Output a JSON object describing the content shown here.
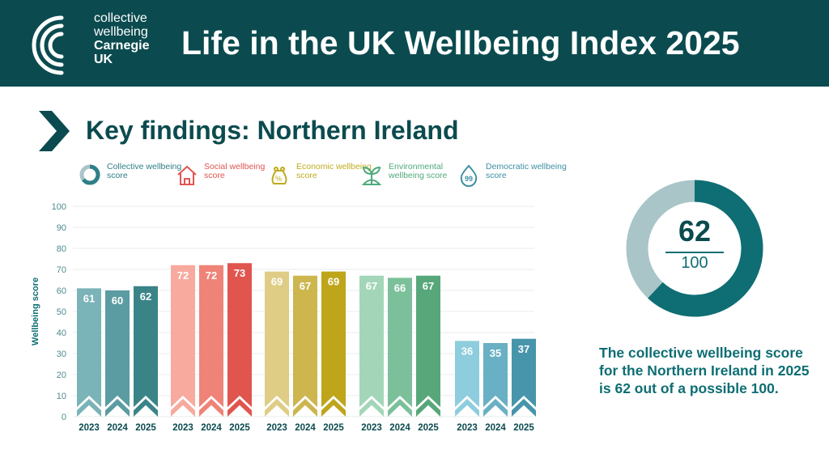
{
  "header": {
    "title": "Life in the UK Wellbeing Index 2025",
    "logo_lines": [
      "collective",
      "wellbeing",
      "Carnegie",
      "UK"
    ]
  },
  "section": {
    "title": "Key findings: Northern Ireland"
  },
  "legend": [
    {
      "label": "Collective wellbeing score",
      "icon": "donut-icon",
      "color": "#2f7f86"
    },
    {
      "label": "Social wellbeing score",
      "icon": "house-icon",
      "color": "#e05552"
    },
    {
      "label": "Economic wellbeing score",
      "icon": "money-bag-icon",
      "color": "#c0ab1e"
    },
    {
      "label": "Environmental wellbeing score",
      "icon": "plant-icon",
      "color": "#4fa97c"
    },
    {
      "label": "Democratic wellbeing score",
      "icon": "speech-drop-icon",
      "color": "#3c8fa4"
    }
  ],
  "chart_data": {
    "type": "bar",
    "ylabel": "Wellbeing score",
    "ylim": [
      0,
      100
    ],
    "yticks": [
      0,
      10,
      20,
      30,
      40,
      50,
      60,
      70,
      80,
      90,
      100
    ],
    "categories": [
      "2023",
      "2024",
      "2025"
    ],
    "grid": true,
    "series": [
      {
        "name": "Collective wellbeing score",
        "values": [
          61,
          60,
          62
        ],
        "colors": [
          "#7ab3b8",
          "#5b9ca2",
          "#3a8488"
        ]
      },
      {
        "name": "Social wellbeing score",
        "values": [
          72,
          72,
          73
        ],
        "colors": [
          "#f7aa9d",
          "#ef8377",
          "#e0554e"
        ]
      },
      {
        "name": "Economic wellbeing score",
        "values": [
          69,
          67,
          69
        ],
        "colors": [
          "#dfcd85",
          "#cdb64e",
          "#bea51a"
        ]
      },
      {
        "name": "Environmental wellbeing score",
        "values": [
          67,
          66,
          67
        ],
        "colors": [
          "#a3d6b8",
          "#7cc09b",
          "#57a77a"
        ]
      },
      {
        "name": "Democratic wellbeing score",
        "values": [
          36,
          35,
          37
        ],
        "colors": [
          "#8ecddd",
          "#69b0c4",
          "#4795ab"
        ]
      }
    ]
  },
  "donut": {
    "value": "62",
    "total": "100",
    "fraction": 0.62,
    "fill_color": "#0e6e73",
    "rest_color": "#a9c5c8"
  },
  "summary": "The collective wellbeing score for the Northern Ireland in 2025 is 62 out of a possible 100."
}
